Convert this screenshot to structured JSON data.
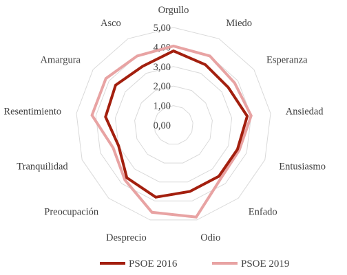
{
  "chart_data": {
    "type": "radar",
    "title": "",
    "categories": [
      "Orgullo",
      "Miedo",
      "Esperanza",
      "Ansiedad",
      "Entusiasmo",
      "Enfado",
      "Odio",
      "Desprecio",
      "Preocupación",
      "Tranquilidad",
      "Resentimiento",
      "Amargura",
      "Asco"
    ],
    "tick_labels": [
      "0,00",
      "1,00",
      "2,00",
      "3,00",
      "4,00",
      "5,00"
    ],
    "rlim": [
      0,
      5
    ],
    "grid": true,
    "legend_position": "bottom",
    "series": [
      {
        "name": "PSOE 2016",
        "color": "#a31f0e",
        "values": [
          3.8,
          3.5,
          3.4,
          3.8,
          3.5,
          3.5,
          3.5,
          3.8,
          3.6,
          3.0,
          3.5,
          3.6,
          3.4
        ]
      },
      {
        "name": "PSOE 2019",
        "color": "#e8a3a3",
        "values": [
          4.05,
          4.0,
          3.8,
          4.0,
          3.6,
          3.65,
          4.85,
          4.6,
          3.75,
          3.3,
          4.2,
          4.2,
          4.0
        ]
      }
    ]
  }
}
